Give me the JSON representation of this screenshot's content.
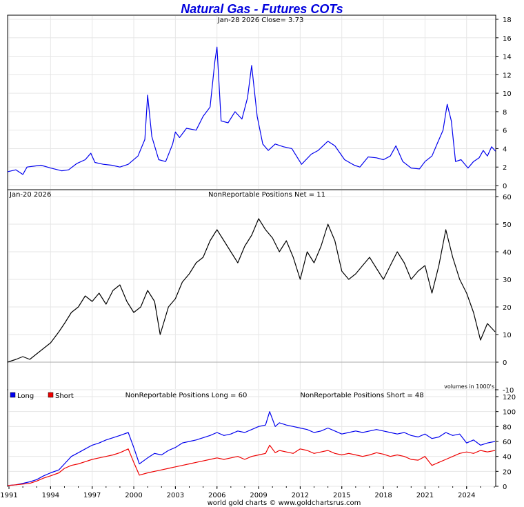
{
  "chart_data": [
    {
      "type": "line",
      "panel": "price",
      "title": "Natural Gas - Futures COTs",
      "subtitle": "Jan-28  2026   Close= 3.73",
      "ylim": [
        0,
        18
      ],
      "yticks": [
        0,
        2,
        4,
        6,
        8,
        10,
        12,
        14,
        16,
        18
      ],
      "series": [
        {
          "color": "#0000ee",
          "x": [
            1990.9,
            1991.5,
            1992.0,
            1992.3,
            1992.8,
            1993.3,
            1994.0,
            1994.8,
            1995.3,
            1995.9,
            1996.5,
            1996.9,
            1997.2,
            1997.8,
            1998.4,
            1999.0,
            1999.6,
            2000.3,
            2000.8,
            2001.0,
            2001.3,
            2001.8,
            2002.3,
            2002.8,
            2003.0,
            2003.3,
            2003.8,
            2004.5,
            2005.0,
            2005.5,
            2005.85,
            2006.0,
            2006.3,
            2006.8,
            2007.3,
            2007.8,
            2008.2,
            2008.5,
            2008.9,
            2009.3,
            2009.7,
            2010.2,
            2010.8,
            2011.4,
            2012.1,
            2012.8,
            2013.3,
            2014.0,
            2014.5,
            2015.2,
            2015.9,
            2016.3,
            2016.9,
            2017.5,
            2018.0,
            2018.5,
            2018.9,
            2019.4,
            2020.0,
            2020.6,
            2021.0,
            2021.5,
            2021.9,
            2022.3,
            2022.6,
            2022.9,
            2023.2,
            2023.6,
            2024.1,
            2024.5,
            2024.9,
            2025.2,
            2025.5,
            2025.8,
            2026.08
          ],
          "y": [
            1.5,
            1.7,
            1.2,
            2.0,
            2.1,
            2.2,
            1.9,
            1.6,
            1.7,
            2.4,
            2.8,
            3.5,
            2.5,
            2.3,
            2.2,
            2.0,
            2.3,
            3.2,
            5.0,
            9.8,
            5.3,
            2.8,
            2.6,
            4.5,
            5.8,
            5.2,
            6.2,
            6.0,
            7.5,
            8.5,
            13.5,
            15.0,
            7.0,
            6.8,
            8.0,
            7.2,
            9.5,
            13.0,
            7.5,
            4.5,
            3.8,
            4.5,
            4.2,
            4.0,
            2.3,
            3.4,
            3.8,
            4.8,
            4.3,
            2.8,
            2.2,
            2.0,
            3.1,
            3.0,
            2.8,
            3.2,
            4.3,
            2.6,
            1.9,
            1.8,
            2.6,
            3.2,
            4.6,
            6.0,
            8.8,
            7.0,
            2.6,
            2.8,
            1.9,
            2.6,
            3.0,
            3.8,
            3.2,
            4.2,
            3.73
          ]
        }
      ]
    },
    {
      "type": "line",
      "panel": "net",
      "title": "NonReportable Positions Net = 11",
      "subtitle": "Jan-20  2026",
      "annotation": "volumes in 1000's",
      "ylim": [
        -10,
        60
      ],
      "yticks": [
        -10,
        0,
        10,
        20,
        30,
        40,
        50,
        60
      ],
      "series": [
        {
          "color": "#000000",
          "x": [
            1990.9,
            1991.5,
            1992.0,
            1992.5,
            1993.0,
            1993.5,
            1994.0,
            1994.6,
            1995.0,
            1995.5,
            1996.0,
            1996.5,
            1997.0,
            1997.5,
            1998.0,
            1998.5,
            1999.0,
            1999.5,
            2000.0,
            2000.5,
            2001.0,
            2001.5,
            2001.9,
            2002.5,
            2003.0,
            2003.5,
            2004.0,
            2004.5,
            2005.0,
            2005.5,
            2006.0,
            2006.5,
            2007.0,
            2007.5,
            2008.0,
            2008.5,
            2009.0,
            2009.5,
            2010.0,
            2010.5,
            2011.0,
            2011.5,
            2012.0,
            2012.5,
            2013.0,
            2013.5,
            2014.0,
            2014.5,
            2015.0,
            2015.5,
            2016.0,
            2016.5,
            2017.0,
            2017.5,
            2018.0,
            2018.5,
            2019.0,
            2019.5,
            2020.0,
            2020.5,
            2021.0,
            2021.5,
            2022.0,
            2022.5,
            2023.0,
            2023.5,
            2024.0,
            2024.5,
            2025.0,
            2025.5,
            2026.05
          ],
          "y": [
            0,
            1,
            2,
            1,
            3,
            5,
            7,
            11,
            14,
            18,
            20,
            24,
            22,
            25,
            21,
            26,
            28,
            22,
            18,
            20,
            26,
            22,
            10,
            20,
            23,
            29,
            32,
            36,
            38,
            44,
            48,
            44,
            40,
            36,
            42,
            46,
            52,
            48,
            45,
            40,
            44,
            38,
            30,
            40,
            36,
            42,
            50,
            44,
            33,
            30,
            32,
            35,
            38,
            34,
            30,
            35,
            40,
            36,
            30,
            33,
            35,
            25,
            35,
            48,
            38,
            30,
            25,
            18,
            8,
            14,
            11
          ]
        }
      ]
    },
    {
      "type": "line",
      "panel": "long-short",
      "ylim": [
        0,
        120
      ],
      "yticks": [
        0,
        20,
        40,
        60,
        80,
        100,
        120
      ],
      "xticks": [
        "1991",
        "1994",
        "1997",
        "2000",
        "2003",
        "2006",
        "2009",
        "2012",
        "2015",
        "2018",
        "2021",
        "2024"
      ],
      "legend": {
        "position": "top-left",
        "entries": [
          "Long",
          "Short"
        ]
      },
      "series": [
        {
          "name": "Long",
          "label": "NonReportable Positions Long = 60",
          "color": "#0000ee",
          "x": [
            1990.9,
            1991.5,
            1992.0,
            1992.5,
            1993.0,
            1993.5,
            1994.0,
            1994.6,
            1995.0,
            1995.5,
            1996.0,
            1996.5,
            1997.0,
            1997.5,
            1998.0,
            1998.5,
            1999.0,
            1999.6,
            2000.0,
            2000.4,
            2001.0,
            2001.5,
            2002.0,
            2002.5,
            2003.0,
            2003.5,
            2004.0,
            2004.5,
            2005.0,
            2005.5,
            2006.0,
            2006.5,
            2007.0,
            2007.5,
            2008.0,
            2008.5,
            2009.0,
            2009.5,
            2009.8,
            2010.2,
            2010.5,
            2011.0,
            2011.5,
            2012.0,
            2012.5,
            2013.0,
            2013.5,
            2014.0,
            2014.5,
            2015.0,
            2015.5,
            2016.0,
            2016.5,
            2017.0,
            2017.5,
            2018.0,
            2018.5,
            2019.0,
            2019.5,
            2020.0,
            2020.5,
            2021.0,
            2021.5,
            2022.0,
            2022.5,
            2023.0,
            2023.5,
            2024.0,
            2024.5,
            2025.0,
            2025.5,
            2026.05
          ],
          "y": [
            1,
            2,
            4,
            6,
            9,
            14,
            18,
            22,
            30,
            40,
            45,
            50,
            55,
            58,
            62,
            65,
            68,
            72,
            52,
            30,
            38,
            44,
            42,
            48,
            52,
            58,
            60,
            62,
            65,
            68,
            72,
            68,
            70,
            74,
            72,
            76,
            80,
            82,
            100,
            80,
            85,
            82,
            80,
            78,
            76,
            72,
            74,
            78,
            74,
            70,
            72,
            74,
            72,
            74,
            76,
            74,
            72,
            70,
            72,
            68,
            66,
            70,
            64,
            66,
            72,
            68,
            70,
            58,
            62,
            55,
            58,
            60
          ]
        },
        {
          "name": "Short",
          "label": "NonReportable Positions Short = 48",
          "color": "#ee0000",
          "x": [
            1990.9,
            1991.5,
            1992.0,
            1992.5,
            1993.0,
            1993.5,
            1994.0,
            1994.6,
            1995.0,
            1995.5,
            1996.0,
            1996.5,
            1997.0,
            1997.5,
            1998.0,
            1998.5,
            1999.0,
            1999.6,
            2000.0,
            2000.4,
            2001.0,
            2001.5,
            2002.0,
            2002.5,
            2003.0,
            2003.5,
            2004.0,
            2004.5,
            2005.0,
            2005.5,
            2006.0,
            2006.5,
            2007.0,
            2007.5,
            2008.0,
            2008.5,
            2009.0,
            2009.5,
            2009.8,
            2010.2,
            2010.5,
            2011.0,
            2011.5,
            2012.0,
            2012.5,
            2013.0,
            2013.5,
            2014.0,
            2014.5,
            2015.0,
            2015.5,
            2016.0,
            2016.5,
            2017.0,
            2017.5,
            2018.0,
            2018.5,
            2019.0,
            2019.5,
            2020.0,
            2020.5,
            2021.0,
            2021.5,
            2022.0,
            2022.5,
            2023.0,
            2023.5,
            2024.0,
            2024.5,
            2025.0,
            2025.5,
            2026.05
          ],
          "y": [
            1,
            2,
            3,
            4,
            7,
            11,
            14,
            18,
            24,
            28,
            30,
            33,
            36,
            38,
            40,
            42,
            45,
            50,
            32,
            15,
            18,
            20,
            22,
            24,
            26,
            28,
            30,
            32,
            34,
            36,
            38,
            36,
            38,
            40,
            36,
            40,
            42,
            44,
            55,
            45,
            48,
            46,
            44,
            50,
            48,
            44,
            46,
            48,
            44,
            42,
            44,
            42,
            40,
            42,
            45,
            43,
            40,
            42,
            40,
            36,
            35,
            40,
            28,
            32,
            36,
            40,
            44,
            46,
            44,
            48,
            46,
            48
          ]
        }
      ]
    }
  ],
  "footer": "world gold charts © www.goldchartsrus.com"
}
